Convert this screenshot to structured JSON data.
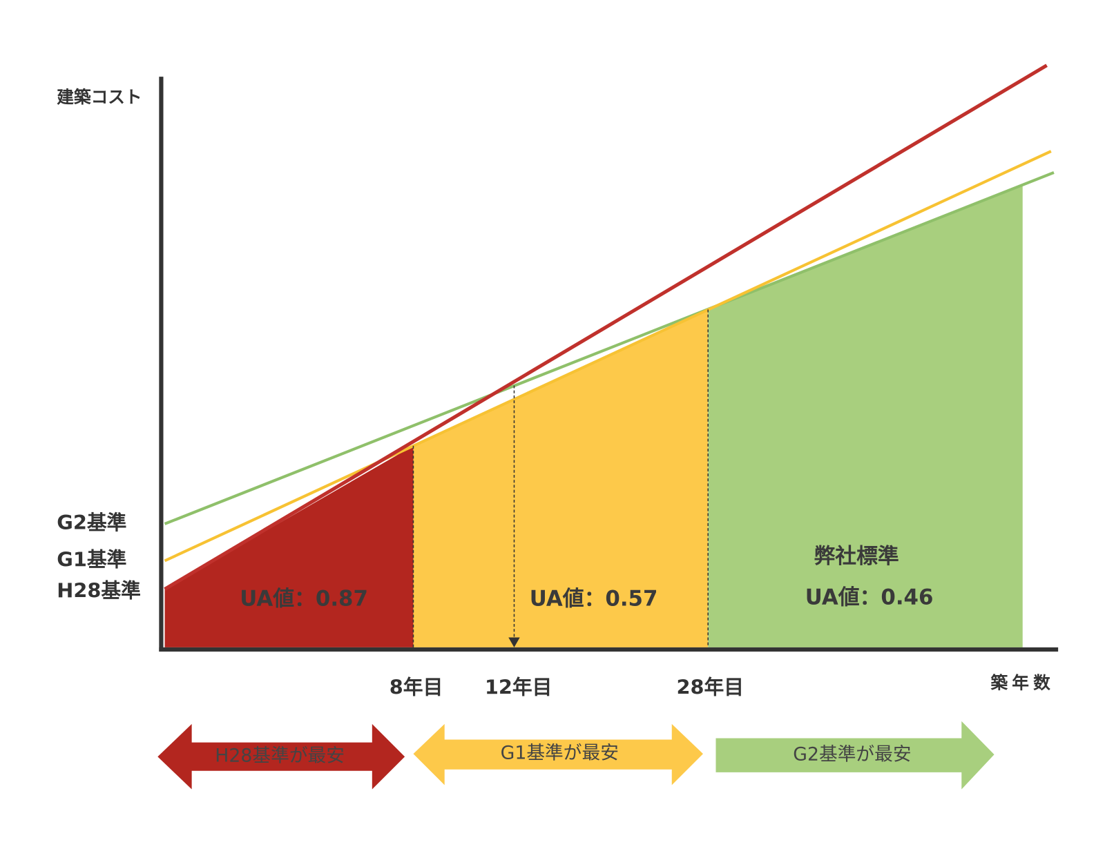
{
  "axis": {
    "y_label": "建築コスト",
    "x_label": "築年数"
  },
  "standards": [
    {
      "label": "G2基準"
    },
    {
      "label": "G1基準"
    },
    {
      "label": "H28基準"
    }
  ],
  "x_markers": [
    "8年目",
    "12年目",
    "28年目"
  ],
  "regions": [
    {
      "ua": "UA値：0.87"
    },
    {
      "ua": "UA値：0.57"
    },
    {
      "name": "弊社標準",
      "ua": "UA値：0.46"
    }
  ],
  "arrows": [
    "H28基準が最安",
    "G1基準が最安",
    "G2基準が最安"
  ]
}
